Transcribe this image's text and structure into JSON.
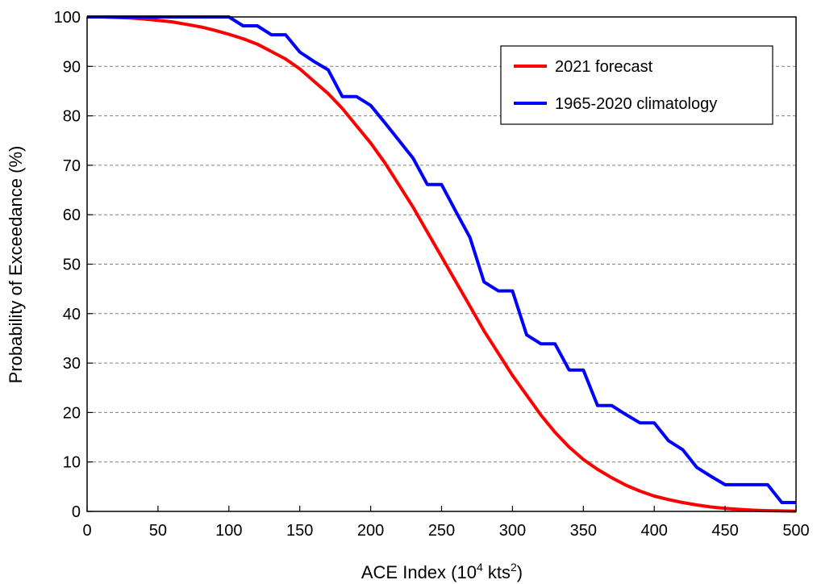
{
  "chart_data": {
    "type": "line",
    "xlabel": "ACE Index (10",
    "xlabel_sup1": "4",
    "xlabel_mid": " kts",
    "xlabel_sup2": "2",
    "xlabel_end": ")",
    "ylabel": "Probability of Exceedance (%)",
    "xlim": [
      0,
      500
    ],
    "ylim": [
      0,
      100
    ],
    "x_ticks": [
      "0",
      "50",
      "100",
      "150",
      "200",
      "250",
      "300",
      "350",
      "400",
      "450",
      "500"
    ],
    "y_ticks": [
      "0",
      "10",
      "20",
      "30",
      "40",
      "50",
      "60",
      "70",
      "80",
      "90",
      "100"
    ],
    "grid": "horizontal-dashed",
    "legend_position": "top-right",
    "series": [
      {
        "name": "2021 forecast",
        "color": "#ff0000",
        "points": [
          [
            0,
            100
          ],
          [
            10,
            100
          ],
          [
            20,
            99.9
          ],
          [
            30,
            99.8
          ],
          [
            40,
            99.6
          ],
          [
            50,
            99.3
          ],
          [
            60,
            99
          ],
          [
            70,
            98.5
          ],
          [
            80,
            98
          ],
          [
            90,
            97.3
          ],
          [
            100,
            96.5
          ],
          [
            110,
            95.6
          ],
          [
            120,
            94.5
          ],
          [
            130,
            93
          ],
          [
            140,
            91.5
          ],
          [
            150,
            89.5
          ],
          [
            160,
            87
          ],
          [
            170,
            84.5
          ],
          [
            180,
            81.5
          ],
          [
            190,
            78
          ],
          [
            200,
            74.5
          ],
          [
            210,
            70.5
          ],
          [
            220,
            66
          ],
          [
            230,
            61.5
          ],
          [
            240,
            56.5
          ],
          [
            250,
            51.5
          ],
          [
            260,
            46.5
          ],
          [
            270,
            41.5
          ],
          [
            280,
            36.5
          ],
          [
            290,
            32
          ],
          [
            300,
            27.5
          ],
          [
            310,
            23.5
          ],
          [
            320,
            19.5
          ],
          [
            330,
            16
          ],
          [
            340,
            13
          ],
          [
            350,
            10.5
          ],
          [
            360,
            8.5
          ],
          [
            370,
            6.8
          ],
          [
            380,
            5.3
          ],
          [
            390,
            4.1
          ],
          [
            400,
            3.1
          ],
          [
            410,
            2.4
          ],
          [
            420,
            1.8
          ],
          [
            430,
            1.3
          ],
          [
            440,
            0.9
          ],
          [
            450,
            0.6
          ],
          [
            460,
            0.4
          ],
          [
            470,
            0.25
          ],
          [
            480,
            0.15
          ],
          [
            490,
            0.1
          ],
          [
            500,
            0.05
          ]
        ]
      },
      {
        "name": "1965-2020 climatology",
        "color": "#0000ff",
        "points": [
          [
            0,
            100
          ],
          [
            100,
            100
          ],
          [
            110,
            98.2
          ],
          [
            120,
            98.2
          ],
          [
            130,
            96.4
          ],
          [
            140,
            96.4
          ],
          [
            150,
            92.9
          ],
          [
            160,
            91
          ],
          [
            170,
            89.3
          ],
          [
            180,
            83.9
          ],
          [
            190,
            83.9
          ],
          [
            200,
            82.1
          ],
          [
            210,
            78.6
          ],
          [
            220,
            75
          ],
          [
            230,
            71.4
          ],
          [
            240,
            66.1
          ],
          [
            250,
            66.1
          ],
          [
            260,
            60.7
          ],
          [
            270,
            55.4
          ],
          [
            280,
            46.4
          ],
          [
            290,
            44.6
          ],
          [
            300,
            44.6
          ],
          [
            310,
            35.7
          ],
          [
            320,
            33.9
          ],
          [
            330,
            33.9
          ],
          [
            340,
            28.6
          ],
          [
            350,
            28.6
          ],
          [
            360,
            21.4
          ],
          [
            370,
            21.4
          ],
          [
            380,
            19.6
          ],
          [
            390,
            17.9
          ],
          [
            400,
            17.9
          ],
          [
            410,
            14.3
          ],
          [
            420,
            12.5
          ],
          [
            430,
            8.9
          ],
          [
            440,
            7.1
          ],
          [
            450,
            5.4
          ],
          [
            460,
            5.4
          ],
          [
            470,
            5.4
          ],
          [
            480,
            5.4
          ],
          [
            490,
            1.8
          ],
          [
            500,
            1.8
          ]
        ]
      }
    ]
  }
}
